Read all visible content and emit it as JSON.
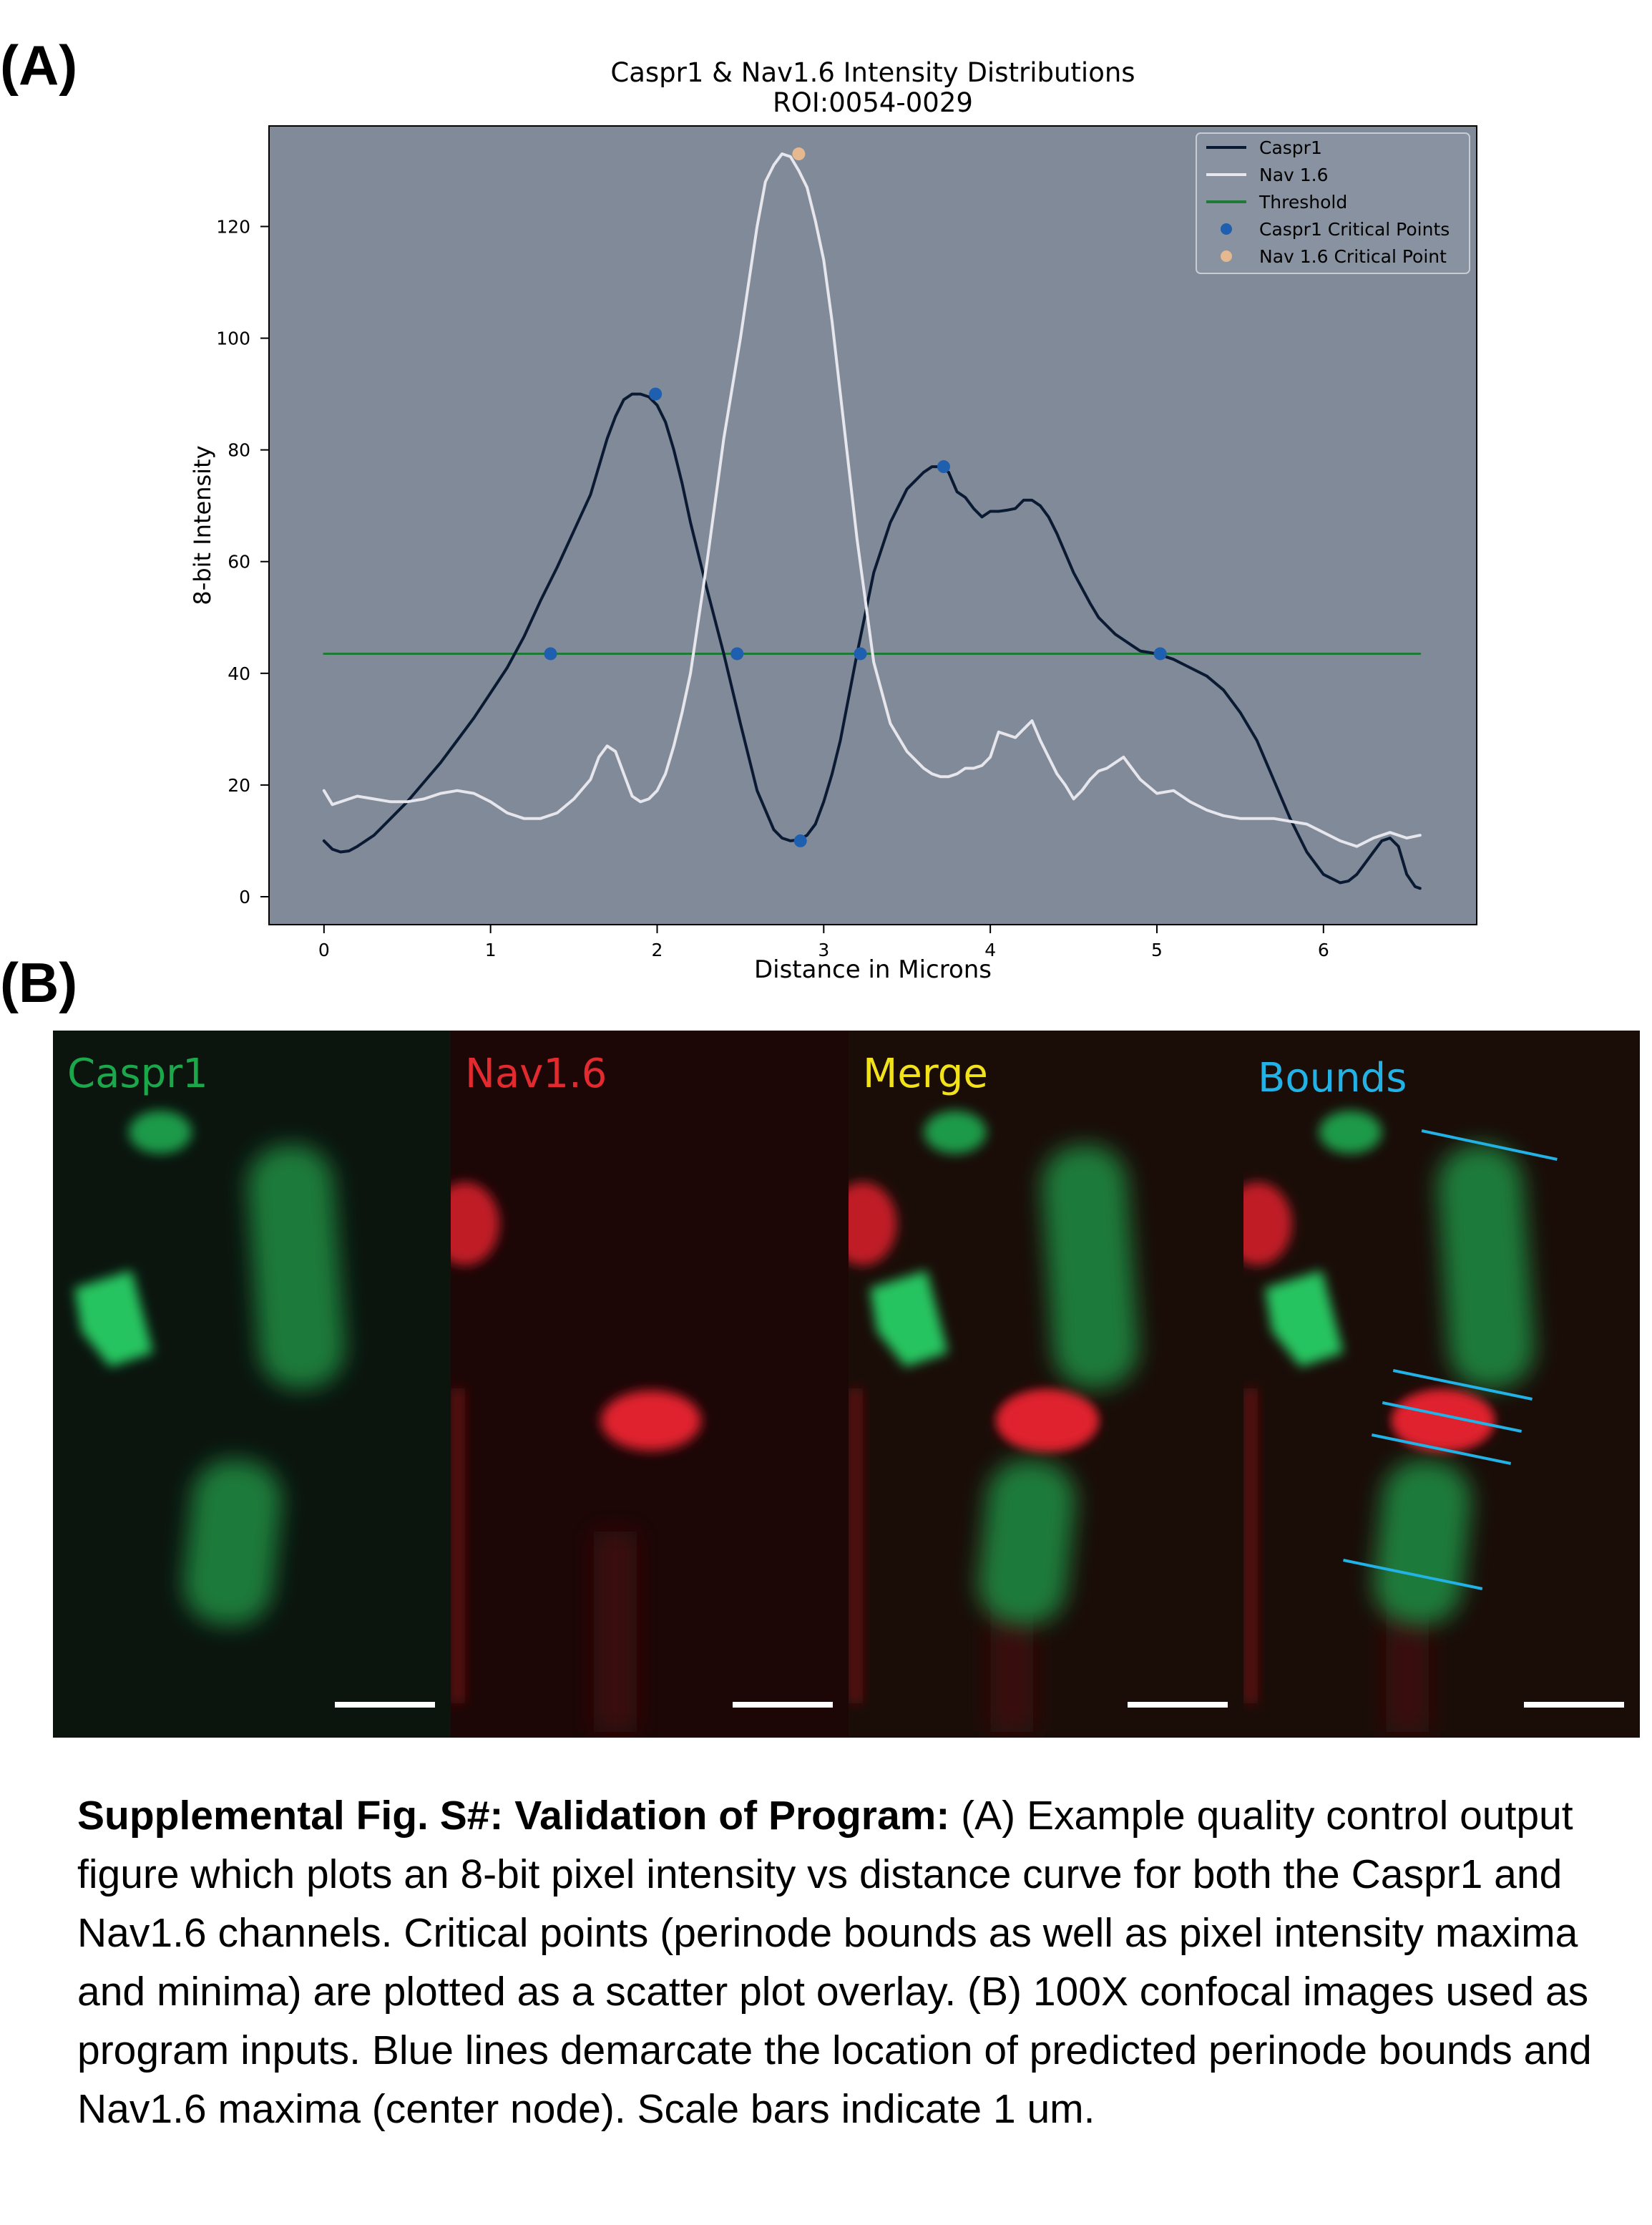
{
  "panel_a_label": "(A)",
  "panel_b_label": "(B)",
  "chart_data": {
    "type": "line",
    "title": "Caspr1 & Nav1.6 Intensity Distributions",
    "subtitle": "ROI:0054-0029",
    "xlabel": "Distance in Microns",
    "ylabel": "8-bit Intensity",
    "xlim": [
      -0.33,
      6.92
    ],
    "ylim": [
      -5,
      138
    ],
    "xticks": [
      0,
      1,
      2,
      3,
      4,
      5,
      6
    ],
    "yticks": [
      0,
      20,
      40,
      60,
      80,
      100,
      120
    ],
    "grid": false,
    "legend_position": "top-right",
    "background": "#808a98",
    "series": [
      {
        "name": "Caspr1",
        "color": "#0b1a33",
        "x": [
          0,
          0.05,
          0.1,
          0.15,
          0.2,
          0.3,
          0.4,
          0.5,
          0.6,
          0.7,
          0.8,
          0.9,
          1.0,
          1.1,
          1.2,
          1.3,
          1.4,
          1.5,
          1.6,
          1.7,
          1.75,
          1.8,
          1.85,
          1.9,
          1.95,
          2.0,
          2.05,
          2.1,
          2.15,
          2.2,
          2.3,
          2.4,
          2.5,
          2.6,
          2.7,
          2.75,
          2.8,
          2.85,
          2.9,
          2.95,
          3.0,
          3.05,
          3.1,
          3.2,
          3.3,
          3.4,
          3.5,
          3.6,
          3.65,
          3.7,
          3.75,
          3.8,
          3.85,
          3.9,
          3.95,
          4.0,
          4.05,
          4.1,
          4.15,
          4.2,
          4.25,
          4.3,
          4.35,
          4.4,
          4.5,
          4.6,
          4.65,
          4.7,
          4.75,
          4.8,
          4.85,
          4.9,
          5.0,
          5.1,
          5.2,
          5.3,
          5.4,
          5.5,
          5.6,
          5.7,
          5.8,
          5.9,
          6.0,
          6.1,
          6.15,
          6.2,
          6.25,
          6.3,
          6.35,
          6.4,
          6.45,
          6.5,
          6.55,
          6.58
        ],
        "values": [
          10,
          8.5,
          8,
          8.2,
          9,
          11,
          14,
          17,
          20.5,
          24,
          28,
          32,
          36.5,
          41,
          46.5,
          53,
          59,
          65.5,
          72,
          82,
          86,
          89,
          90,
          90,
          89.5,
          88,
          85,
          80,
          74,
          67,
          55,
          43.5,
          31,
          19,
          12,
          10.5,
          10,
          10.2,
          11,
          13,
          17,
          22,
          28,
          43.5,
          58,
          67,
          73,
          76,
          77,
          77,
          76,
          72.5,
          71.5,
          69.5,
          68,
          69,
          69,
          69.2,
          69.5,
          71,
          71,
          70,
          68,
          65,
          58,
          52.5,
          50,
          48.5,
          47,
          46,
          45,
          44,
          43.5,
          42.5,
          41,
          39.5,
          37,
          33,
          28,
          21,
          14,
          8,
          4,
          2.5,
          2.8,
          4,
          6,
          8,
          10,
          10.5,
          9,
          4,
          1.8,
          1.5
        ]
      },
      {
        "name": "Nav 1.6",
        "color": "#e6e6ec",
        "x": [
          0,
          0.05,
          0.1,
          0.15,
          0.2,
          0.3,
          0.4,
          0.5,
          0.6,
          0.7,
          0.8,
          0.9,
          1.0,
          1.1,
          1.2,
          1.3,
          1.4,
          1.5,
          1.6,
          1.65,
          1.7,
          1.75,
          1.8,
          1.85,
          1.9,
          1.95,
          2.0,
          2.05,
          2.1,
          2.15,
          2.2,
          2.3,
          2.4,
          2.5,
          2.55,
          2.6,
          2.65,
          2.7,
          2.75,
          2.8,
          2.85,
          2.9,
          2.95,
          3.0,
          3.05,
          3.1,
          3.2,
          3.3,
          3.4,
          3.5,
          3.6,
          3.65,
          3.7,
          3.75,
          3.8,
          3.85,
          3.9,
          3.95,
          4.0,
          4.05,
          4.1,
          4.15,
          4.2,
          4.25,
          4.3,
          4.35,
          4.4,
          4.45,
          4.5,
          4.55,
          4.6,
          4.65,
          4.7,
          4.75,
          4.8,
          4.85,
          4.9,
          5.0,
          5.1,
          5.2,
          5.3,
          5.4,
          5.5,
          5.6,
          5.7,
          5.8,
          5.9,
          6.0,
          6.1,
          6.2,
          6.3,
          6.4,
          6.5,
          6.58
        ],
        "values": [
          19,
          16.5,
          17,
          17.5,
          18,
          17.5,
          17,
          17,
          17.5,
          18.5,
          19,
          18.5,
          17,
          15,
          14,
          14,
          15,
          17.5,
          21,
          25,
          27,
          26,
          22,
          18,
          17,
          17.5,
          19,
          22,
          27,
          33,
          40,
          60,
          82,
          100,
          110,
          120,
          128,
          131,
          133,
          132.5,
          130,
          127,
          121,
          114,
          103,
          90,
          64,
          42,
          31,
          26,
          23,
          22,
          21.5,
          21.5,
          22,
          23,
          23,
          23.5,
          25,
          29.5,
          29,
          28.5,
          30,
          31.5,
          28,
          25,
          22,
          20,
          17.5,
          19,
          21,
          22.5,
          23,
          24,
          25,
          23,
          21,
          18.5,
          19,
          17,
          15.5,
          14.5,
          14,
          14,
          14,
          13.5,
          13,
          11.5,
          10,
          9,
          10.5,
          11.5,
          10.5,
          11
        ]
      },
      {
        "name": "Threshold",
        "color": "#1e7a34",
        "x": [
          0,
          6.58
        ],
        "values": [
          43.5,
          43.5
        ]
      }
    ],
    "scatter": [
      {
        "name": "Caspr1 Critical Points",
        "color": "#1f5fb0",
        "x": [
          1.36,
          1.99,
          2.48,
          2.86,
          3.22,
          3.72,
          5.02
        ],
        "values": [
          43.5,
          90,
          43.5,
          10,
          43.5,
          77,
          43.5
        ]
      },
      {
        "name": "Nav 1.6 Critical Point",
        "color": "#e6b88f",
        "x": [
          2.85
        ],
        "values": [
          133
        ]
      }
    ]
  },
  "micrographs": [
    {
      "label": "Caspr1",
      "label_color": "#1aa84b",
      "kind": "caspr"
    },
    {
      "label": "Nav1.6",
      "label_color": "#e32a2e",
      "kind": "nav"
    },
    {
      "label": "Merge",
      "label_color": "#f2e21a",
      "kind": "merge"
    },
    {
      "label": "Bounds",
      "label_color": "#22b2e6",
      "kind": "bounds"
    }
  ],
  "caption": {
    "bold": "Supplemental Fig. S#: Validation of Program:",
    "text": " (A) Example quality control output figure which plots an 8-bit pixel intensity vs distance curve for both the Caspr1 and Nav1.6 channels. Critical points (perinode bounds as well as pixel intensity maxima and minima) are plotted as a scatter plot overlay. (B) 100X confocal images used as program inputs. Blue lines demarcate the location of predicted perinode bounds and Nav1.6 maxima (center node). Scale bars indicate 1 um."
  }
}
